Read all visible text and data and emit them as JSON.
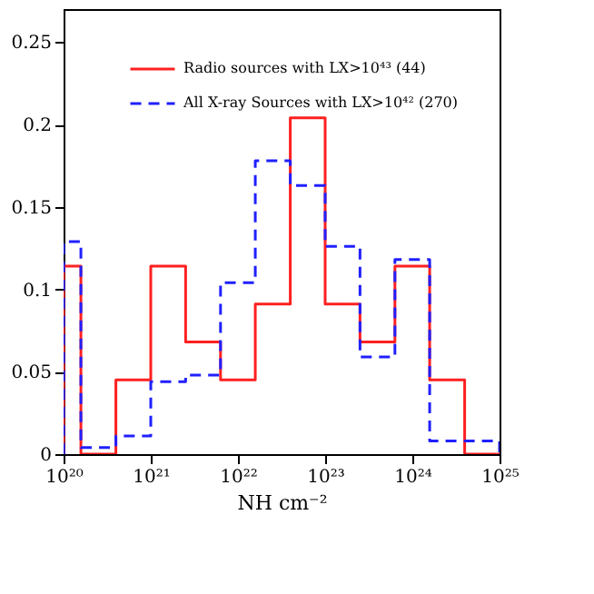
{
  "chart_data": {
    "type": "histogram",
    "xlabel": "NH cm⁻²",
    "bins": [
      1e+20,
      1.58e+20,
      3.98e+20,
      1e+21,
      2.51e+21,
      6.31e+21,
      1.58e+22,
      3.98e+22,
      1e+23,
      2.51e+23,
      6.31e+23,
      1.58e+24,
      3.98e+24,
      1e+25
    ],
    "series": [
      {
        "name": "Radio sources with LX>10⁴³ (44)",
        "color": "#ff2020",
        "line_style": "solid",
        "values": [
          0.114,
          0,
          0.045,
          0.114,
          0.068,
          0.045,
          0.091,
          0.204,
          0.091,
          0.068,
          0.114,
          0.045,
          0
        ]
      },
      {
        "name": "All X-ray Sources  with LX>10⁴² (270)",
        "color": "#2020ff",
        "line_style": "dashed",
        "values": [
          0.129,
          0.004,
          0.011,
          0.044,
          0.048,
          0.104,
          0.178,
          0.163,
          0.126,
          0.059,
          0.118,
          0.008,
          0.008
        ]
      }
    ],
    "log": "x",
    "xlim": [
      1e+20,
      1e+25
    ],
    "xticks": [
      {
        "value": 1e+20,
        "label": "10²⁰"
      },
      {
        "value": 1e+21,
        "label": "10²¹"
      },
      {
        "value": 1e+22,
        "label": "10²²"
      },
      {
        "value": 1e+23,
        "label": "10²³"
      },
      {
        "value": 1e+24,
        "label": "10²⁴"
      },
      {
        "value": 1e+25,
        "label": "10²⁵"
      }
    ],
    "ylim": [
      0,
      0.27
    ],
    "yticks": [
      0,
      0.05,
      0.1,
      0.15,
      0.2,
      0.25
    ],
    "grid": false,
    "legend": "top right"
  }
}
